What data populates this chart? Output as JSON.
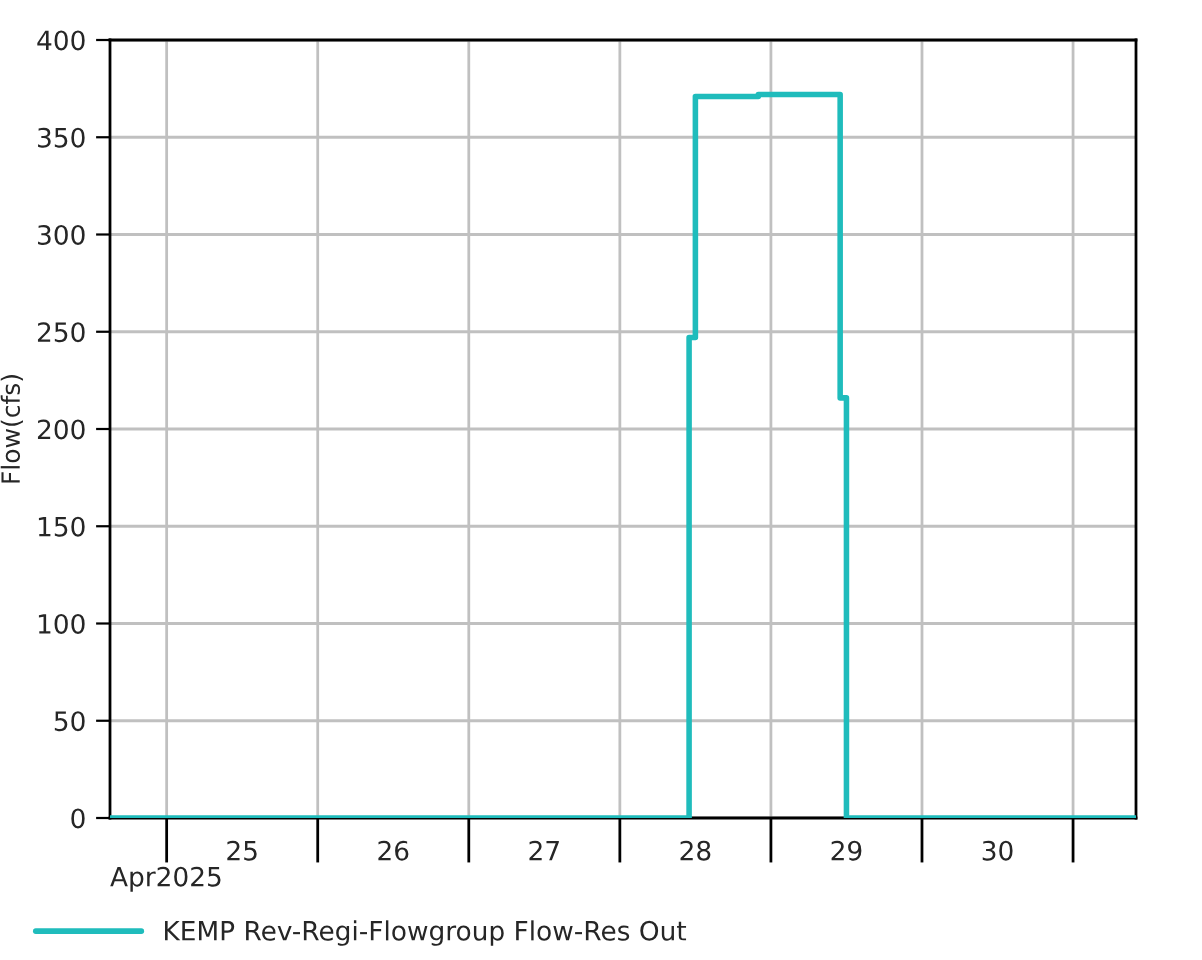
{
  "chart_data": {
    "type": "step",
    "ylabel": "Flow(cfs)",
    "annotations": [
      "Apr2025"
    ],
    "x": [
      "2025-04-24T15:00",
      "2025-04-28T11:00",
      "2025-04-28T12:00",
      "2025-04-28T22:00",
      "2025-04-29T11:00",
      "2025-04-29T12:00",
      "2025-05-01T10:00"
    ],
    "series": [
      {
        "name": "KEMP Rev-Regi-Flowgroup Flow-Res Out",
        "color": "#1fbcbc",
        "values": [
          0,
          247,
          371,
          372,
          216,
          0,
          0
        ]
      }
    ],
    "xlim": [
      "2025-04-24T15:00",
      "2025-05-01T10:00"
    ],
    "xticks": [
      {
        "value": "2025-04-25",
        "label": null
      },
      {
        "value": "2025-04-26",
        "label": null
      },
      {
        "value": "2025-04-27",
        "label": null
      },
      {
        "value": "2025-04-28",
        "label": null
      },
      {
        "value": "2025-04-29",
        "label": null
      },
      {
        "value": "2025-04-30",
        "label": null
      },
      {
        "value": "2025-05-01",
        "label": null
      },
      {
        "value": "2025-04-25T12:00",
        "label": "25"
      },
      {
        "value": "2025-04-26T12:00",
        "label": "26"
      },
      {
        "value": "2025-04-27T12:00",
        "label": "27"
      },
      {
        "value": "2025-04-28T12:00",
        "label": "28"
      },
      {
        "value": "2025-04-29T12:00",
        "label": "29"
      },
      {
        "value": "2025-04-30T12:00",
        "label": "30"
      }
    ],
    "ylim": [
      0,
      400
    ],
    "yticks": [
      0,
      50,
      100,
      150,
      200,
      250,
      300,
      350,
      400
    ],
    "grid": true,
    "legend": "bottom",
    "marker": "none",
    "line_style": "solid"
  }
}
